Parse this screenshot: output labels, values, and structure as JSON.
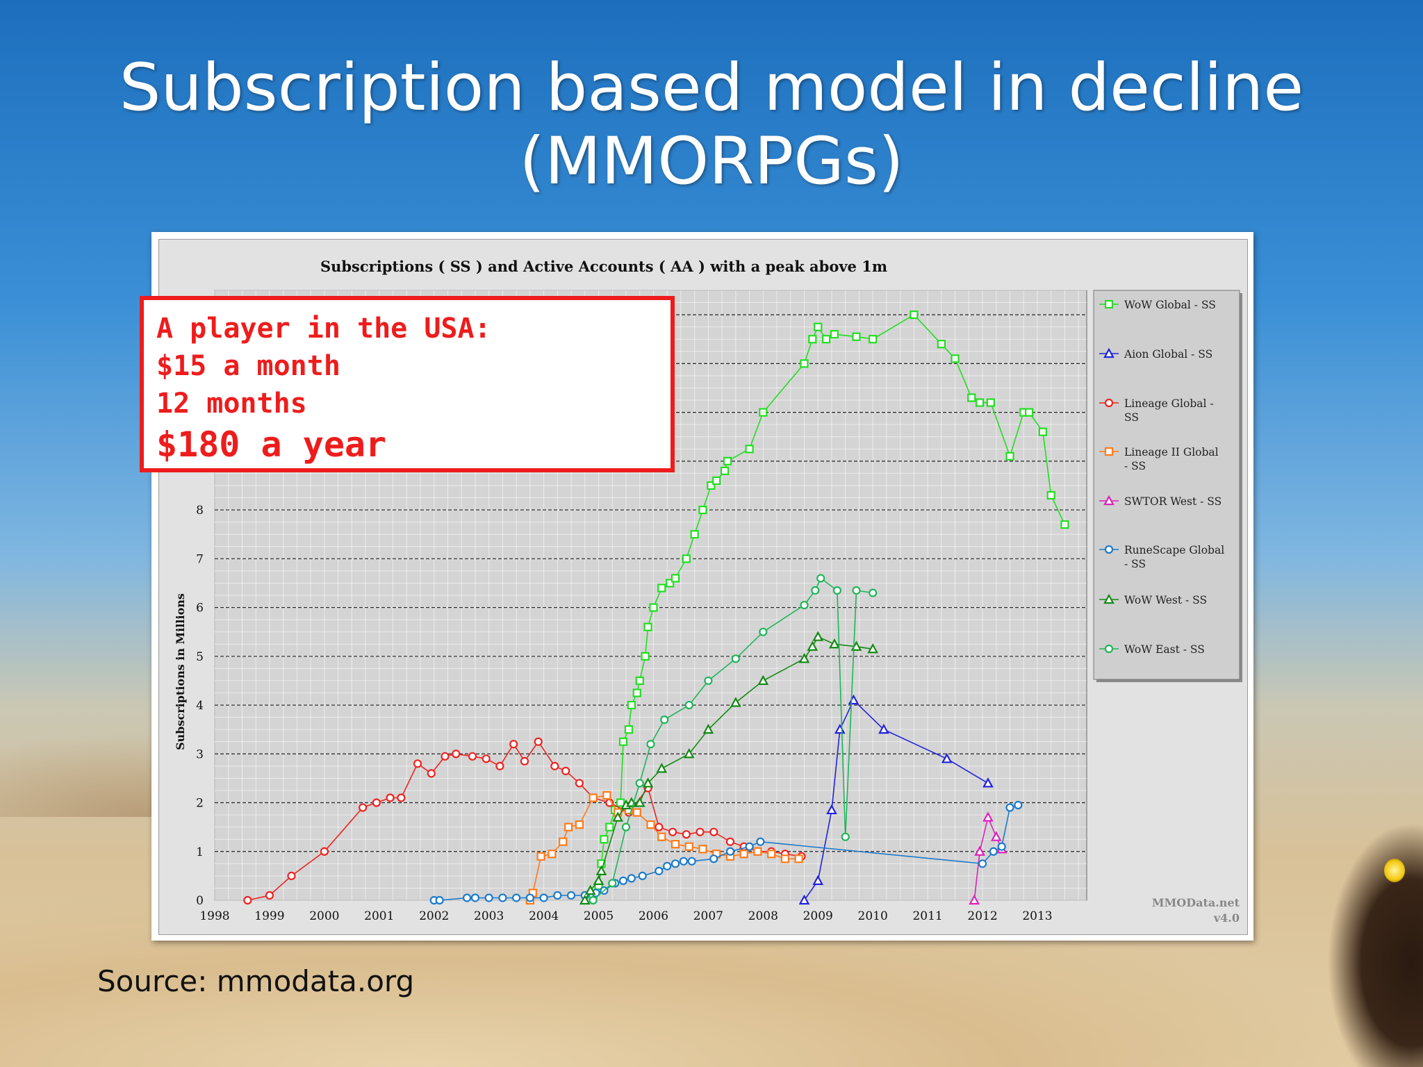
{
  "slide": {
    "title_line1": "Subscription based model in decline",
    "title_line2": "(MMORPGs)",
    "source": "Source: mmodata.org",
    "callout": {
      "line1": "A player in the USA:",
      "line2": "$15 a month",
      "line3": "12 months",
      "line4": "$180 a year"
    }
  },
  "chart_data": {
    "type": "line",
    "title": "Subscriptions ( SS ) and Active Accounts ( AA ) with a peak above 1m",
    "ylabel": "Subscriptions in Millions",
    "xlabel": "",
    "xlim": [
      1998,
      2013.9
    ],
    "ylim": [
      0,
      12.5
    ],
    "x_ticks": [
      1998,
      1999,
      2000,
      2001,
      2002,
      2003,
      2004,
      2005,
      2006,
      2007,
      2008,
      2009,
      2010,
      2011,
      2012,
      2013
    ],
    "y_ticks": [
      0,
      1,
      2,
      3,
      4,
      5,
      6,
      7,
      8
    ],
    "grid": true,
    "legend_position": "right",
    "watermark_line1": "MMOData.net",
    "watermark_line2": "v4.0",
    "series": [
      {
        "name": "WoW Global - SS",
        "color": "#22dd22",
        "marker": "square",
        "points": [
          [
            2004.9,
            0.1
          ],
          [
            2005.0,
            0.3
          ],
          [
            2005.05,
            0.75
          ],
          [
            2005.1,
            1.25
          ],
          [
            2005.2,
            1.5
          ],
          [
            2005.3,
            1.85
          ],
          [
            2005.4,
            2.0
          ],
          [
            2005.45,
            3.25
          ],
          [
            2005.55,
            3.5
          ],
          [
            2005.6,
            4.0
          ],
          [
            2005.7,
            4.25
          ],
          [
            2005.75,
            4.5
          ],
          [
            2005.85,
            5.0
          ],
          [
            2005.9,
            5.6
          ],
          [
            2006.0,
            6.0
          ],
          [
            2006.15,
            6.4
          ],
          [
            2006.3,
            6.5
          ],
          [
            2006.4,
            6.6
          ],
          [
            2006.6,
            7.0
          ],
          [
            2006.75,
            7.5
          ],
          [
            2006.9,
            8.0
          ],
          [
            2007.05,
            8.5
          ],
          [
            2007.15,
            8.6
          ],
          [
            2007.3,
            8.8
          ],
          [
            2007.35,
            9.0
          ],
          [
            2007.75,
            9.25
          ],
          [
            2008.0,
            10.0
          ],
          [
            2008.75,
            11.0
          ],
          [
            2008.9,
            11.5
          ],
          [
            2009.0,
            11.75
          ],
          [
            2009.15,
            11.5
          ],
          [
            2009.3,
            11.6
          ],
          [
            2009.7,
            11.55
          ],
          [
            2010.0,
            11.5
          ],
          [
            2010.75,
            12.0
          ],
          [
            2011.25,
            11.4
          ],
          [
            2011.5,
            11.1
          ],
          [
            2011.8,
            10.3
          ],
          [
            2011.95,
            10.2
          ],
          [
            2012.15,
            10.2
          ],
          [
            2012.5,
            9.1
          ],
          [
            2012.75,
            10.0
          ],
          [
            2012.85,
            10.0
          ],
          [
            2013.1,
            9.6
          ],
          [
            2013.25,
            8.3
          ],
          [
            2013.5,
            7.7
          ]
        ]
      },
      {
        "name": "Aion Global - SS",
        "color": "#2222dd",
        "marker": "triangle",
        "points": [
          [
            2008.75,
            0.0
          ],
          [
            2009.0,
            0.4
          ],
          [
            2009.25,
            1.85
          ],
          [
            2009.4,
            3.5
          ],
          [
            2009.65,
            4.1
          ],
          [
            2010.2,
            3.5
          ],
          [
            2011.35,
            2.9
          ],
          [
            2012.1,
            2.4
          ]
        ]
      },
      {
        "name": "Lineage Global - SS",
        "color": "#ee2222",
        "marker": "circle",
        "points": [
          [
            1998.6,
            0.0
          ],
          [
            1999.0,
            0.1
          ],
          [
            1999.4,
            0.5
          ],
          [
            2000.0,
            1.0
          ],
          [
            2000.7,
            1.9
          ],
          [
            2000.95,
            2.0
          ],
          [
            2001.2,
            2.1
          ],
          [
            2001.4,
            2.1
          ],
          [
            2001.7,
            2.8
          ],
          [
            2001.95,
            2.6
          ],
          [
            2002.2,
            2.95
          ],
          [
            2002.4,
            3.0
          ],
          [
            2002.7,
            2.95
          ],
          [
            2002.95,
            2.9
          ],
          [
            2003.2,
            2.75
          ],
          [
            2003.45,
            3.2
          ],
          [
            2003.65,
            2.85
          ],
          [
            2003.9,
            3.25
          ],
          [
            2004.2,
            2.75
          ],
          [
            2004.4,
            2.65
          ],
          [
            2004.65,
            2.4
          ],
          [
            2004.9,
            2.1
          ],
          [
            2005.2,
            2.0
          ],
          [
            2005.55,
            1.8
          ],
          [
            2005.9,
            2.3
          ],
          [
            2006.1,
            1.5
          ],
          [
            2006.35,
            1.4
          ],
          [
            2006.6,
            1.35
          ],
          [
            2006.85,
            1.4
          ],
          [
            2007.1,
            1.4
          ],
          [
            2007.4,
            1.2
          ],
          [
            2007.65,
            1.1
          ],
          [
            2007.9,
            1.0
          ],
          [
            2008.15,
            1.0
          ],
          [
            2008.4,
            0.95
          ],
          [
            2008.7,
            0.9
          ]
        ]
      },
      {
        "name": "Lineage II Global - SS",
        "color": "#ff7a1a",
        "marker": "square",
        "points": [
          [
            2003.75,
            0.0
          ],
          [
            2003.8,
            0.15
          ],
          [
            2003.95,
            0.9
          ],
          [
            2004.15,
            0.95
          ],
          [
            2004.35,
            1.2
          ],
          [
            2004.45,
            1.5
          ],
          [
            2004.65,
            1.55
          ],
          [
            2004.9,
            2.1
          ],
          [
            2005.15,
            2.15
          ],
          [
            2005.35,
            1.8
          ],
          [
            2005.55,
            1.85
          ],
          [
            2005.7,
            1.8
          ],
          [
            2005.95,
            1.55
          ],
          [
            2006.15,
            1.3
          ],
          [
            2006.4,
            1.15
          ],
          [
            2006.65,
            1.1
          ],
          [
            2006.9,
            1.05
          ],
          [
            2007.15,
            0.95
          ],
          [
            2007.4,
            0.9
          ],
          [
            2007.65,
            0.95
          ],
          [
            2007.9,
            1.0
          ],
          [
            2008.15,
            0.95
          ],
          [
            2008.4,
            0.85
          ],
          [
            2008.65,
            0.85
          ]
        ]
      },
      {
        "name": "SWTOR West - SS",
        "color": "#dd22bb",
        "marker": "triangle",
        "points": [
          [
            2011.85,
            0.0
          ],
          [
            2011.95,
            1.0
          ],
          [
            2012.1,
            1.7
          ],
          [
            2012.25,
            1.3
          ],
          [
            2012.35,
            1.05
          ]
        ]
      },
      {
        "name": "RuneScape Global - SS",
        "color": "#1a7acc",
        "marker": "circle",
        "points": [
          [
            2002.0,
            0.0
          ],
          [
            2002.1,
            0.0
          ],
          [
            2002.6,
            0.05
          ],
          [
            2002.75,
            0.05
          ],
          [
            2003.0,
            0.05
          ],
          [
            2003.25,
            0.05
          ],
          [
            2003.5,
            0.05
          ],
          [
            2003.75,
            0.05
          ],
          [
            2004.0,
            0.05
          ],
          [
            2004.25,
            0.1
          ],
          [
            2004.5,
            0.1
          ],
          [
            2004.75,
            0.1
          ],
          [
            2004.95,
            0.15
          ],
          [
            2005.1,
            0.2
          ],
          [
            2005.3,
            0.35
          ],
          [
            2005.45,
            0.4
          ],
          [
            2005.6,
            0.45
          ],
          [
            2005.8,
            0.5
          ],
          [
            2006.1,
            0.6
          ],
          [
            2006.25,
            0.7
          ],
          [
            2006.4,
            0.75
          ],
          [
            2006.55,
            0.8
          ],
          [
            2006.7,
            0.8
          ],
          [
            2007.1,
            0.85
          ],
          [
            2007.4,
            1.0
          ],
          [
            2007.75,
            1.1
          ],
          [
            2007.95,
            1.2
          ],
          [
            2012.0,
            0.75
          ],
          [
            2012.2,
            1.0
          ],
          [
            2012.35,
            1.1
          ],
          [
            2012.5,
            1.9
          ],
          [
            2012.65,
            1.95
          ]
        ]
      },
      {
        "name": "WoW West - SS",
        "color": "#138a13",
        "marker": "triangle",
        "points": [
          [
            2004.75,
            0.0
          ],
          [
            2004.85,
            0.2
          ],
          [
            2005.0,
            0.4
          ],
          [
            2005.05,
            0.6
          ],
          [
            2005.35,
            1.7
          ],
          [
            2005.5,
            1.95
          ],
          [
            2005.6,
            2.0
          ],
          [
            2005.75,
            2.0
          ],
          [
            2005.9,
            2.4
          ],
          [
            2006.15,
            2.7
          ],
          [
            2006.65,
            3.0
          ],
          [
            2007.0,
            3.5
          ],
          [
            2007.5,
            4.05
          ],
          [
            2008.0,
            4.5
          ],
          [
            2008.75,
            4.95
          ],
          [
            2008.9,
            5.2
          ],
          [
            2009.0,
            5.4
          ],
          [
            2009.3,
            5.25
          ],
          [
            2009.7,
            5.2
          ],
          [
            2010.0,
            5.15
          ]
        ]
      },
      {
        "name": "WoW East - SS",
        "color": "#1eb55a",
        "marker": "circle",
        "points": [
          [
            2004.9,
            0.0
          ],
          [
            2005.25,
            0.35
          ],
          [
            2005.5,
            1.5
          ],
          [
            2005.75,
            2.4
          ],
          [
            2005.95,
            3.2
          ],
          [
            2006.2,
            3.7
          ],
          [
            2006.65,
            4.0
          ],
          [
            2007.0,
            4.5
          ],
          [
            2007.5,
            4.95
          ],
          [
            2008.0,
            5.5
          ],
          [
            2008.75,
            6.05
          ],
          [
            2008.95,
            6.35
          ],
          [
            2009.05,
            6.6
          ],
          [
            2009.35,
            6.35
          ],
          [
            2009.5,
            1.3
          ],
          [
            2009.7,
            6.35
          ],
          [
            2010.0,
            6.3
          ]
        ]
      }
    ]
  }
}
